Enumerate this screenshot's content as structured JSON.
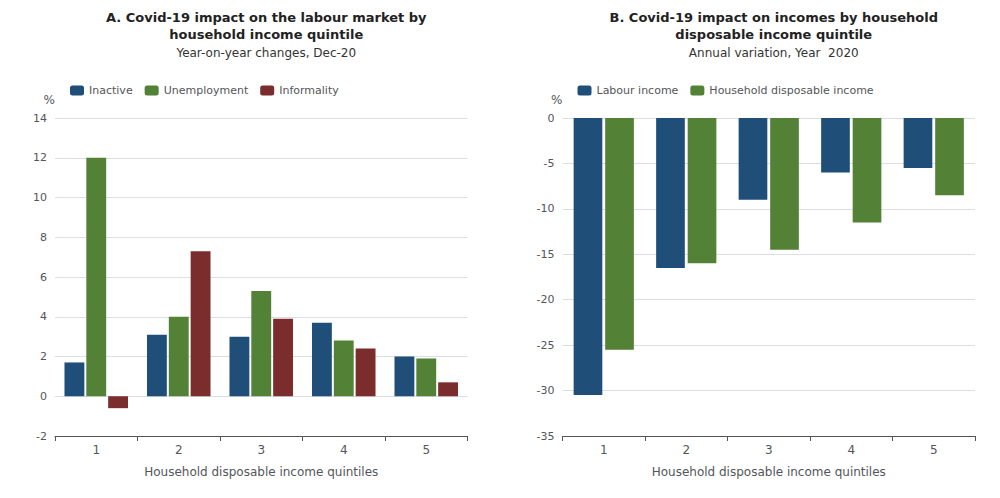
{
  "chart_data": [
    {
      "type": "bar",
      "title": "A. Covid-19 impact on the labour market by\nhousehold income quintile",
      "subtitle": "Year-on-year changes, Dec-20",
      "xlabel": "Household disposable income quintiles",
      "ylabel": "%",
      "categories": [
        "1",
        "2",
        "3",
        "4",
        "5"
      ],
      "series": [
        {
          "name": "Inactive",
          "color": "#1f4e79",
          "values": [
            1.7,
            3.1,
            3.0,
            3.7,
            2.0
          ]
        },
        {
          "name": "Unemployment",
          "color": "#538135",
          "values": [
            12.0,
            4.0,
            5.3,
            2.8,
            1.9
          ]
        },
        {
          "name": "Informality",
          "color": "#7b2c2c",
          "values": [
            -0.6,
            7.3,
            3.9,
            2.4,
            0.7
          ]
        }
      ],
      "ylim": [
        -2,
        14
      ],
      "yticks": [
        -2,
        0,
        2,
        4,
        6,
        8,
        10,
        12,
        14
      ],
      "grid": true,
      "legend": "upper left"
    },
    {
      "type": "bar",
      "title": "B. Covid-19 impact on incomes by household\ndisposable income quintile",
      "subtitle": "Annual variation, Year  2020",
      "xlabel": "Household disposable income quintiles",
      "ylabel": "%",
      "categories": [
        "1",
        "2",
        "3",
        "4",
        "5"
      ],
      "series": [
        {
          "name": "Labour income",
          "color": "#1f4e79",
          "values": [
            -30.5,
            -16.5,
            -9.0,
            -6.0,
            -5.5
          ]
        },
        {
          "name": "Household disposable income",
          "color": "#538135",
          "values": [
            -25.5,
            -16.0,
            -14.5,
            -11.5,
            -8.5
          ]
        }
      ],
      "ylim": [
        -35,
        0
      ],
      "yticks": [
        -35,
        -30,
        -25,
        -20,
        -15,
        -10,
        -5,
        0
      ],
      "grid": true,
      "legend": "upper left"
    }
  ]
}
